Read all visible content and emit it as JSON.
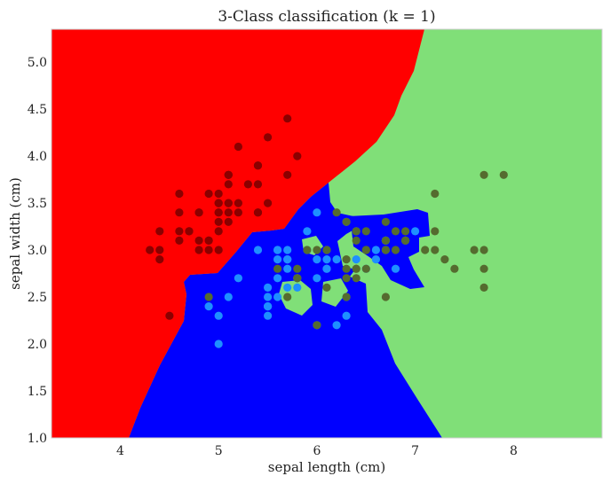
{
  "chart_data": {
    "type": "scatter",
    "title": "3-Class classification (k = 1)",
    "xlabel": "sepal length (cm)",
    "ylabel": "sepal width (cm)",
    "xlim": [
      3.3,
      8.9
    ],
    "ylim": [
      1.0,
      5.35
    ],
    "xticks": [
      "4",
      "5",
      "6",
      "7",
      "8"
    ],
    "yticks": [
      "1.0",
      "1.5",
      "2.0",
      "2.5",
      "3.0",
      "3.5",
      "4.0",
      "4.5",
      "5.0"
    ],
    "grid": false,
    "legend": "none",
    "decision_regions": {
      "colors": {
        "setosa": "#ff0000",
        "versicolor": "#0000ff",
        "virginica": "#80df78"
      }
    },
    "series": [
      {
        "color": "#8b0000",
        "x": [
          4.3,
          4.4,
          4.4,
          4.4,
          4.5,
          4.6,
          4.6,
          4.6,
          4.6,
          4.7,
          4.7,
          4.8,
          4.8,
          4.8,
          4.8,
          4.9,
          4.9,
          4.9,
          4.9,
          5.0,
          5.0,
          5.0,
          5.0,
          5.0,
          5.0,
          5.0,
          5.0,
          5.1,
          5.1,
          5.1,
          5.1,
          5.1,
          5.1,
          5.1,
          5.1,
          5.2,
          5.2,
          5.2,
          5.3,
          5.4,
          5.4,
          5.4,
          5.4,
          5.4,
          5.5,
          5.5,
          5.7,
          5.7,
          5.8
        ],
        "y": [
          3.0,
          2.9,
          3.0,
          3.2,
          2.3,
          3.1,
          3.2,
          3.4,
          3.6,
          3.2,
          3.2,
          3.0,
          3.1,
          3.4,
          3.4,
          3.0,
          3.1,
          3.1,
          3.6,
          3.0,
          3.2,
          3.3,
          3.4,
          3.4,
          3.5,
          3.5,
          3.6,
          3.3,
          3.4,
          3.5,
          3.5,
          3.7,
          3.8,
          3.8,
          3.8,
          3.4,
          3.5,
          4.1,
          3.7,
          3.4,
          3.7,
          3.9,
          3.9,
          3.4,
          3.5,
          4.2,
          3.8,
          4.4,
          4.0
        ]
      },
      {
        "color": "#1e90ff",
        "x": [
          4.9,
          5.0,
          5.0,
          5.1,
          5.2,
          5.4,
          5.5,
          5.5,
          5.5,
          5.5,
          5.5,
          5.6,
          5.6,
          5.6,
          5.6,
          5.6,
          5.7,
          5.7,
          5.7,
          5.7,
          5.7,
          5.8,
          5.8,
          5.8,
          5.9,
          5.9,
          6.0,
          6.0,
          6.0,
          6.0,
          6.1,
          6.1,
          6.1,
          6.1,
          6.2,
          6.2,
          6.3,
          6.3,
          6.3,
          6.4,
          6.4,
          6.5,
          6.6,
          6.6,
          6.7,
          6.7,
          6.7,
          6.8,
          6.9,
          7.0
        ],
        "y": [
          2.4,
          2.0,
          2.3,
          2.5,
          2.7,
          3.0,
          2.3,
          2.4,
          2.4,
          2.5,
          2.6,
          2.5,
          2.7,
          2.9,
          3.0,
          3.0,
          2.6,
          2.8,
          2.9,
          2.9,
          3.0,
          2.6,
          2.7,
          2.7,
          3.0,
          3.2,
          2.2,
          2.7,
          2.9,
          3.4,
          2.8,
          2.8,
          2.9,
          3.0,
          2.2,
          2.9,
          2.3,
          2.5,
          3.3,
          2.9,
          3.2,
          2.8,
          2.9,
          3.0,
          3.0,
          3.1,
          3.1,
          2.8,
          3.1,
          3.2
        ]
      },
      {
        "color": "#556b2f",
        "x": [
          4.9,
          5.6,
          5.7,
          5.8,
          5.8,
          5.8,
          5.9,
          6.0,
          6.0,
          6.1,
          6.1,
          6.2,
          6.3,
          6.3,
          6.3,
          6.3,
          6.3,
          6.4,
          6.4,
          6.4,
          6.4,
          6.4,
          6.5,
          6.5,
          6.5,
          6.5,
          6.7,
          6.7,
          6.7,
          6.7,
          6.8,
          6.8,
          6.9,
          6.9,
          6.9,
          7.1,
          7.2,
          7.2,
          7.2,
          7.3,
          7.4,
          7.6,
          7.7,
          7.7,
          7.7,
          7.7,
          7.9
        ],
        "y": [
          2.5,
          2.8,
          2.5,
          2.7,
          2.8,
          2.7,
          3.0,
          2.2,
          3.0,
          2.6,
          3.0,
          3.4,
          2.5,
          2.8,
          2.9,
          2.7,
          3.3,
          2.7,
          2.8,
          3.1,
          3.2,
          2.8,
          3.0,
          3.0,
          3.2,
          2.8,
          3.3,
          3.0,
          2.5,
          3.1,
          3.0,
          3.2,
          3.1,
          3.1,
          3.2,
          3.0,
          3.6,
          3.2,
          3.0,
          2.9,
          2.8,
          3.0,
          3.8,
          2.6,
          2.8,
          3.0,
          3.8
        ]
      }
    ]
  }
}
